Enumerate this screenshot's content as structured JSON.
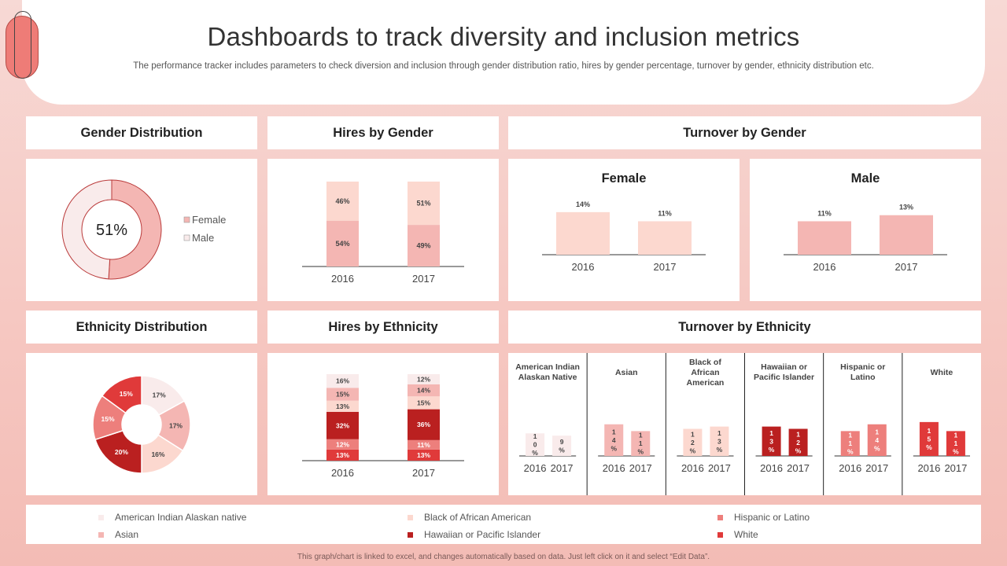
{
  "title": "Dashboards to track diversity and inclusion metrics",
  "subtitle": "The performance tracker includes parameters to check diversion and inclusion through gender distribution ratio, hires by gender percentage, turnover by gender, ethnicity distribution etc.",
  "footer_note": "This graph/chart is linked to excel, and changes automatically based on data. Just left click on it and select “Edit Data”.",
  "colors": {
    "lightest": "#f9ebeb",
    "light": "#fcd8cf",
    "pink": "#f4b6b3",
    "salmon": "#ed7f7c",
    "dark": "#ba2020",
    "red": "#e03a3a"
  },
  "sections": {
    "gender_distribution": "Gender Distribution",
    "hires_by_gender": "Hires by Gender",
    "turnover_by_gender": "Turnover by Gender",
    "ethnicity_distribution": "Ethnicity Distribution",
    "hires_by_ethnicity": "Hires by Ethnicity",
    "turnover_by_ethnicity": "Turnover by Ethnicity"
  },
  "ethnicity_legend": [
    {
      "label": "American Indian Alaskan native",
      "color": "#f9ebeb"
    },
    {
      "label": "Asian",
      "color": "#f4b6b3"
    },
    {
      "label": "Black of African American",
      "color": "#fcd8cf"
    },
    {
      "label": "Hawaiian or Pacific Islander",
      "color": "#ba2020"
    },
    {
      "label": "Hispanic or Latino",
      "color": "#ed7f7c"
    },
    {
      "label": "White",
      "color": "#e03a3a"
    }
  ],
  "chart_data": [
    {
      "id": "gender_distribution",
      "type": "pie",
      "subtype": "donut",
      "title": "Gender Distribution",
      "center_label": "51%",
      "labels": [
        "Female",
        "Male"
      ],
      "values": [
        51,
        49
      ],
      "colors": [
        "#f4b6b3",
        "#f9ebeb"
      ]
    },
    {
      "id": "hires_by_gender",
      "type": "bar",
      "stacked": true,
      "title": "Hires by Gender",
      "categories": [
        "2016",
        "2017"
      ],
      "series": [
        {
          "name": "Male",
          "values": [
            54,
            49
          ],
          "labels": [
            "54%",
            "49%"
          ],
          "color": "#f4b6b3"
        },
        {
          "name": "Female",
          "values": [
            46,
            51
          ],
          "labels": [
            "46%",
            "51%"
          ],
          "color": "#fcd8cf"
        }
      ]
    },
    {
      "id": "turnover_female",
      "type": "bar",
      "title": "Female",
      "categories": [
        "2016",
        "2017"
      ],
      "values": [
        14,
        11
      ],
      "labels": [
        "14%",
        "11%"
      ],
      "color": "#fcd8cf",
      "ylim": [
        0,
        15
      ]
    },
    {
      "id": "turnover_male",
      "type": "bar",
      "title": "Male",
      "categories": [
        "2016",
        "2017"
      ],
      "values": [
        11,
        13
      ],
      "labels": [
        "11%",
        "13%"
      ],
      "color": "#f4b6b3",
      "ylim": [
        0,
        15
      ]
    },
    {
      "id": "ethnicity_distribution",
      "type": "pie",
      "subtype": "donut",
      "title": "Ethnicity Distribution",
      "labels": [
        "American Indian Alaskan native",
        "Asian",
        "Black of African American",
        "Hawaiian or Pacific Islander",
        "Hispanic or Latino",
        "White"
      ],
      "values": [
        17,
        17,
        16,
        20,
        15,
        15
      ],
      "value_labels": [
        "17%",
        "17%",
        "16%",
        "20%",
        "15%",
        "15%"
      ],
      "colors": [
        "#f9ebeb",
        "#f4b6b3",
        "#fcd8cf",
        "#ba2020",
        "#ed7f7c",
        "#e03a3a"
      ]
    },
    {
      "id": "hires_by_ethnicity",
      "type": "bar",
      "stacked": true,
      "title": "Hires by Ethnicity",
      "categories": [
        "2016",
        "2017"
      ],
      "series": [
        {
          "name": "White",
          "values": [
            13,
            13
          ],
          "labels": [
            "13%",
            "13%"
          ],
          "color": "#e03a3a"
        },
        {
          "name": "Hispanic or Latino",
          "values": [
            12,
            11
          ],
          "labels": [
            "12%",
            "11%"
          ],
          "color": "#ed7f7c"
        },
        {
          "name": "Hawaiian or Pacific Islander",
          "values": [
            32,
            36
          ],
          "labels": [
            "32%",
            "36%"
          ],
          "color": "#ba2020"
        },
        {
          "name": "Black of African American",
          "values": [
            13,
            15
          ],
          "labels": [
            "13%",
            "15%"
          ],
          "color": "#fcd8cf"
        },
        {
          "name": "Asian",
          "values": [
            15,
            14
          ],
          "labels": [
            "15%",
            "14%"
          ],
          "color": "#f4b6b3"
        },
        {
          "name": "American Indian Alaskan native",
          "values": [
            16,
            12
          ],
          "labels": [
            "16%",
            "12%"
          ],
          "color": "#f9ebeb"
        }
      ]
    },
    {
      "id": "turnover_by_ethnicity",
      "type": "bar",
      "title": "Turnover by Ethnicity",
      "categories": [
        "2016",
        "2017"
      ],
      "ylim": [
        0,
        16
      ],
      "groups": [
        {
          "title": "American Indian Alaskan Native",
          "title_lines": [
            "American Indian",
            "Alaskan Native"
          ],
          "values": [
            10,
            9
          ],
          "labels": [
            "10%",
            "9%"
          ],
          "color": "#f9ebeb",
          "text_color": "#444"
        },
        {
          "title": "Asian",
          "title_lines": [
            "Asian"
          ],
          "values": [
            14,
            11
          ],
          "labels": [
            "14%",
            "11%"
          ],
          "color": "#f4b6b3",
          "text_color": "#444"
        },
        {
          "title": "Black of African American",
          "title_lines": [
            "Black of",
            "African",
            "American"
          ],
          "values": [
            12,
            13
          ],
          "labels": [
            "12%",
            "13%"
          ],
          "color": "#fcd8cf",
          "text_color": "#444"
        },
        {
          "title": "Hawaiian or Pacific Islander",
          "title_lines": [
            "Hawaiian or",
            "Pacific Islander"
          ],
          "values": [
            13,
            12
          ],
          "labels": [
            "13%",
            "12%"
          ],
          "color": "#ba2020",
          "text_color": "#ffffff"
        },
        {
          "title": "Hispanic or Latino",
          "title_lines": [
            "Hispanic or",
            "Latino"
          ],
          "values": [
            11,
            14
          ],
          "labels": [
            "11%",
            "14%"
          ],
          "color": "#ed7f7c",
          "text_color": "#ffffff"
        },
        {
          "title": "White",
          "title_lines": [
            "White"
          ],
          "values": [
            15,
            11
          ],
          "labels": [
            "15%",
            "11%"
          ],
          "color": "#e03a3a",
          "text_color": "#ffffff"
        }
      ]
    }
  ]
}
